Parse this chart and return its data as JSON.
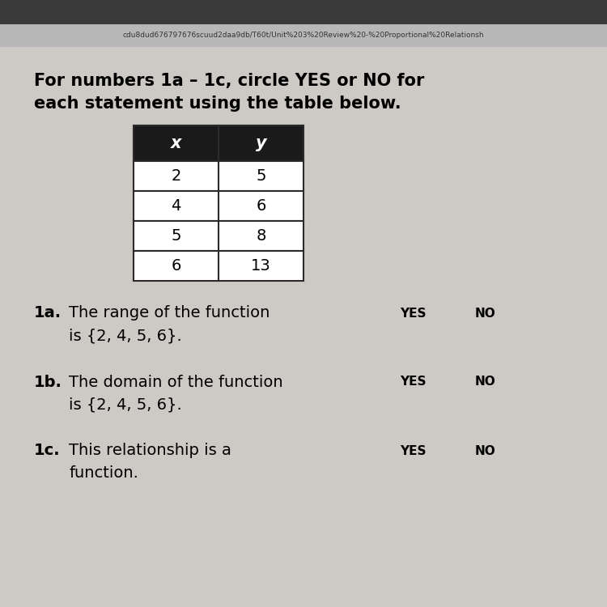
{
  "title_line1": "For numbers 1a – 1c, circle YES or NO for",
  "title_line2": "each statement using the table below.",
  "table_headers": [
    "x",
    "y"
  ],
  "table_data": [
    [
      "2",
      "5"
    ],
    [
      "4",
      "6"
    ],
    [
      "5",
      "8"
    ],
    [
      "6",
      "13"
    ]
  ],
  "header_bg": "#1a1a1a",
  "header_text_color": "#ffffff",
  "cell_bg": "#ffffff",
  "cell_border_color": "#2a2a2a",
  "statements": [
    {
      "label": "1a.",
      "line1": "The range of the function",
      "line2": "is {2, 4, 5, 6}."
    },
    {
      "label": "1b.",
      "line1": "The domain of the function",
      "line2": "is {2, 4, 5, 6}."
    },
    {
      "label": "1c.",
      "line1": "This relationship is a",
      "line2": "function."
    }
  ],
  "yes_no": [
    "YES",
    "NO"
  ],
  "top_bar_color": "#3a3a3a",
  "url_bar_color": "#b8b8b8",
  "url_text": "cdu8dud676797676scuud2daa9db/T60t/Unit%203%20Review%20-%20Proportional%20Relationsh",
  "body_bg": "#cdc9c4",
  "content_bg": "#d6d2cd"
}
